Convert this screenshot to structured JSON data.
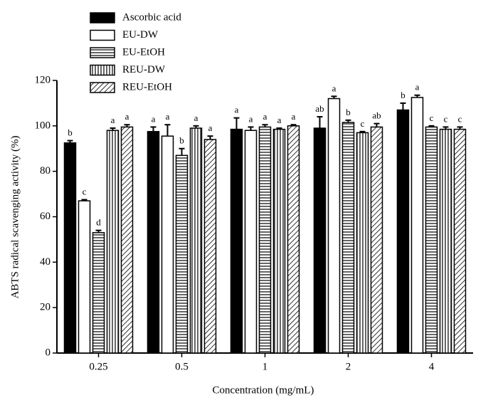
{
  "chart_data": {
    "type": "bar",
    "x_label": "Concentration (mg/mL)",
    "y_label": "ABTS radical scavenging activity (%)",
    "categories": [
      "0.25",
      "0.5",
      "1",
      "2",
      "4"
    ],
    "ylim": [
      0,
      120
    ],
    "yticks": [
      0,
      20,
      40,
      60,
      80,
      100,
      120
    ],
    "series": [
      {
        "name": "Ascorbic acid",
        "color": "#000000",
        "pattern": "solid",
        "values": [
          92.5,
          97.5,
          98.5,
          99,
          107
        ],
        "errors": [
          1,
          2,
          5,
          5,
          3
        ],
        "labels": [
          "b",
          "a",
          "a",
          "ab",
          "b"
        ]
      },
      {
        "name": "EU-DW",
        "color": "#000000",
        "pattern": "none",
        "values": [
          67,
          95.5,
          98,
          112,
          112.5
        ],
        "errors": [
          0.5,
          5,
          1.5,
          1,
          1
        ],
        "labels": [
          "c",
          "a",
          "a",
          "a",
          "a"
        ]
      },
      {
        "name": "EU-EtOH",
        "color": "#000000",
        "pattern": "horizontal",
        "values": [
          53,
          87,
          99.5,
          101.5,
          99.5
        ],
        "errors": [
          1,
          3,
          1,
          1,
          0.5
        ],
        "labels": [
          "d",
          "b",
          "a",
          "b",
          "c"
        ]
      },
      {
        "name": "REU-DW",
        "color": "#000000",
        "pattern": "vertical",
        "values": [
          98,
          99,
          98.5,
          97,
          98.5
        ],
        "errors": [
          1,
          1,
          0.5,
          0.5,
          1
        ],
        "labels": [
          "a",
          "a",
          "a",
          "c",
          "c"
        ]
      },
      {
        "name": "REU-EtOH",
        "color": "#000000",
        "pattern": "diagonal",
        "values": [
          99.5,
          94,
          100,
          99.5,
          98.5
        ],
        "errors": [
          1,
          1.5,
          0.5,
          1.5,
          1
        ],
        "labels": [
          "a",
          "a",
          "a",
          "ab",
          "c"
        ]
      }
    ]
  }
}
